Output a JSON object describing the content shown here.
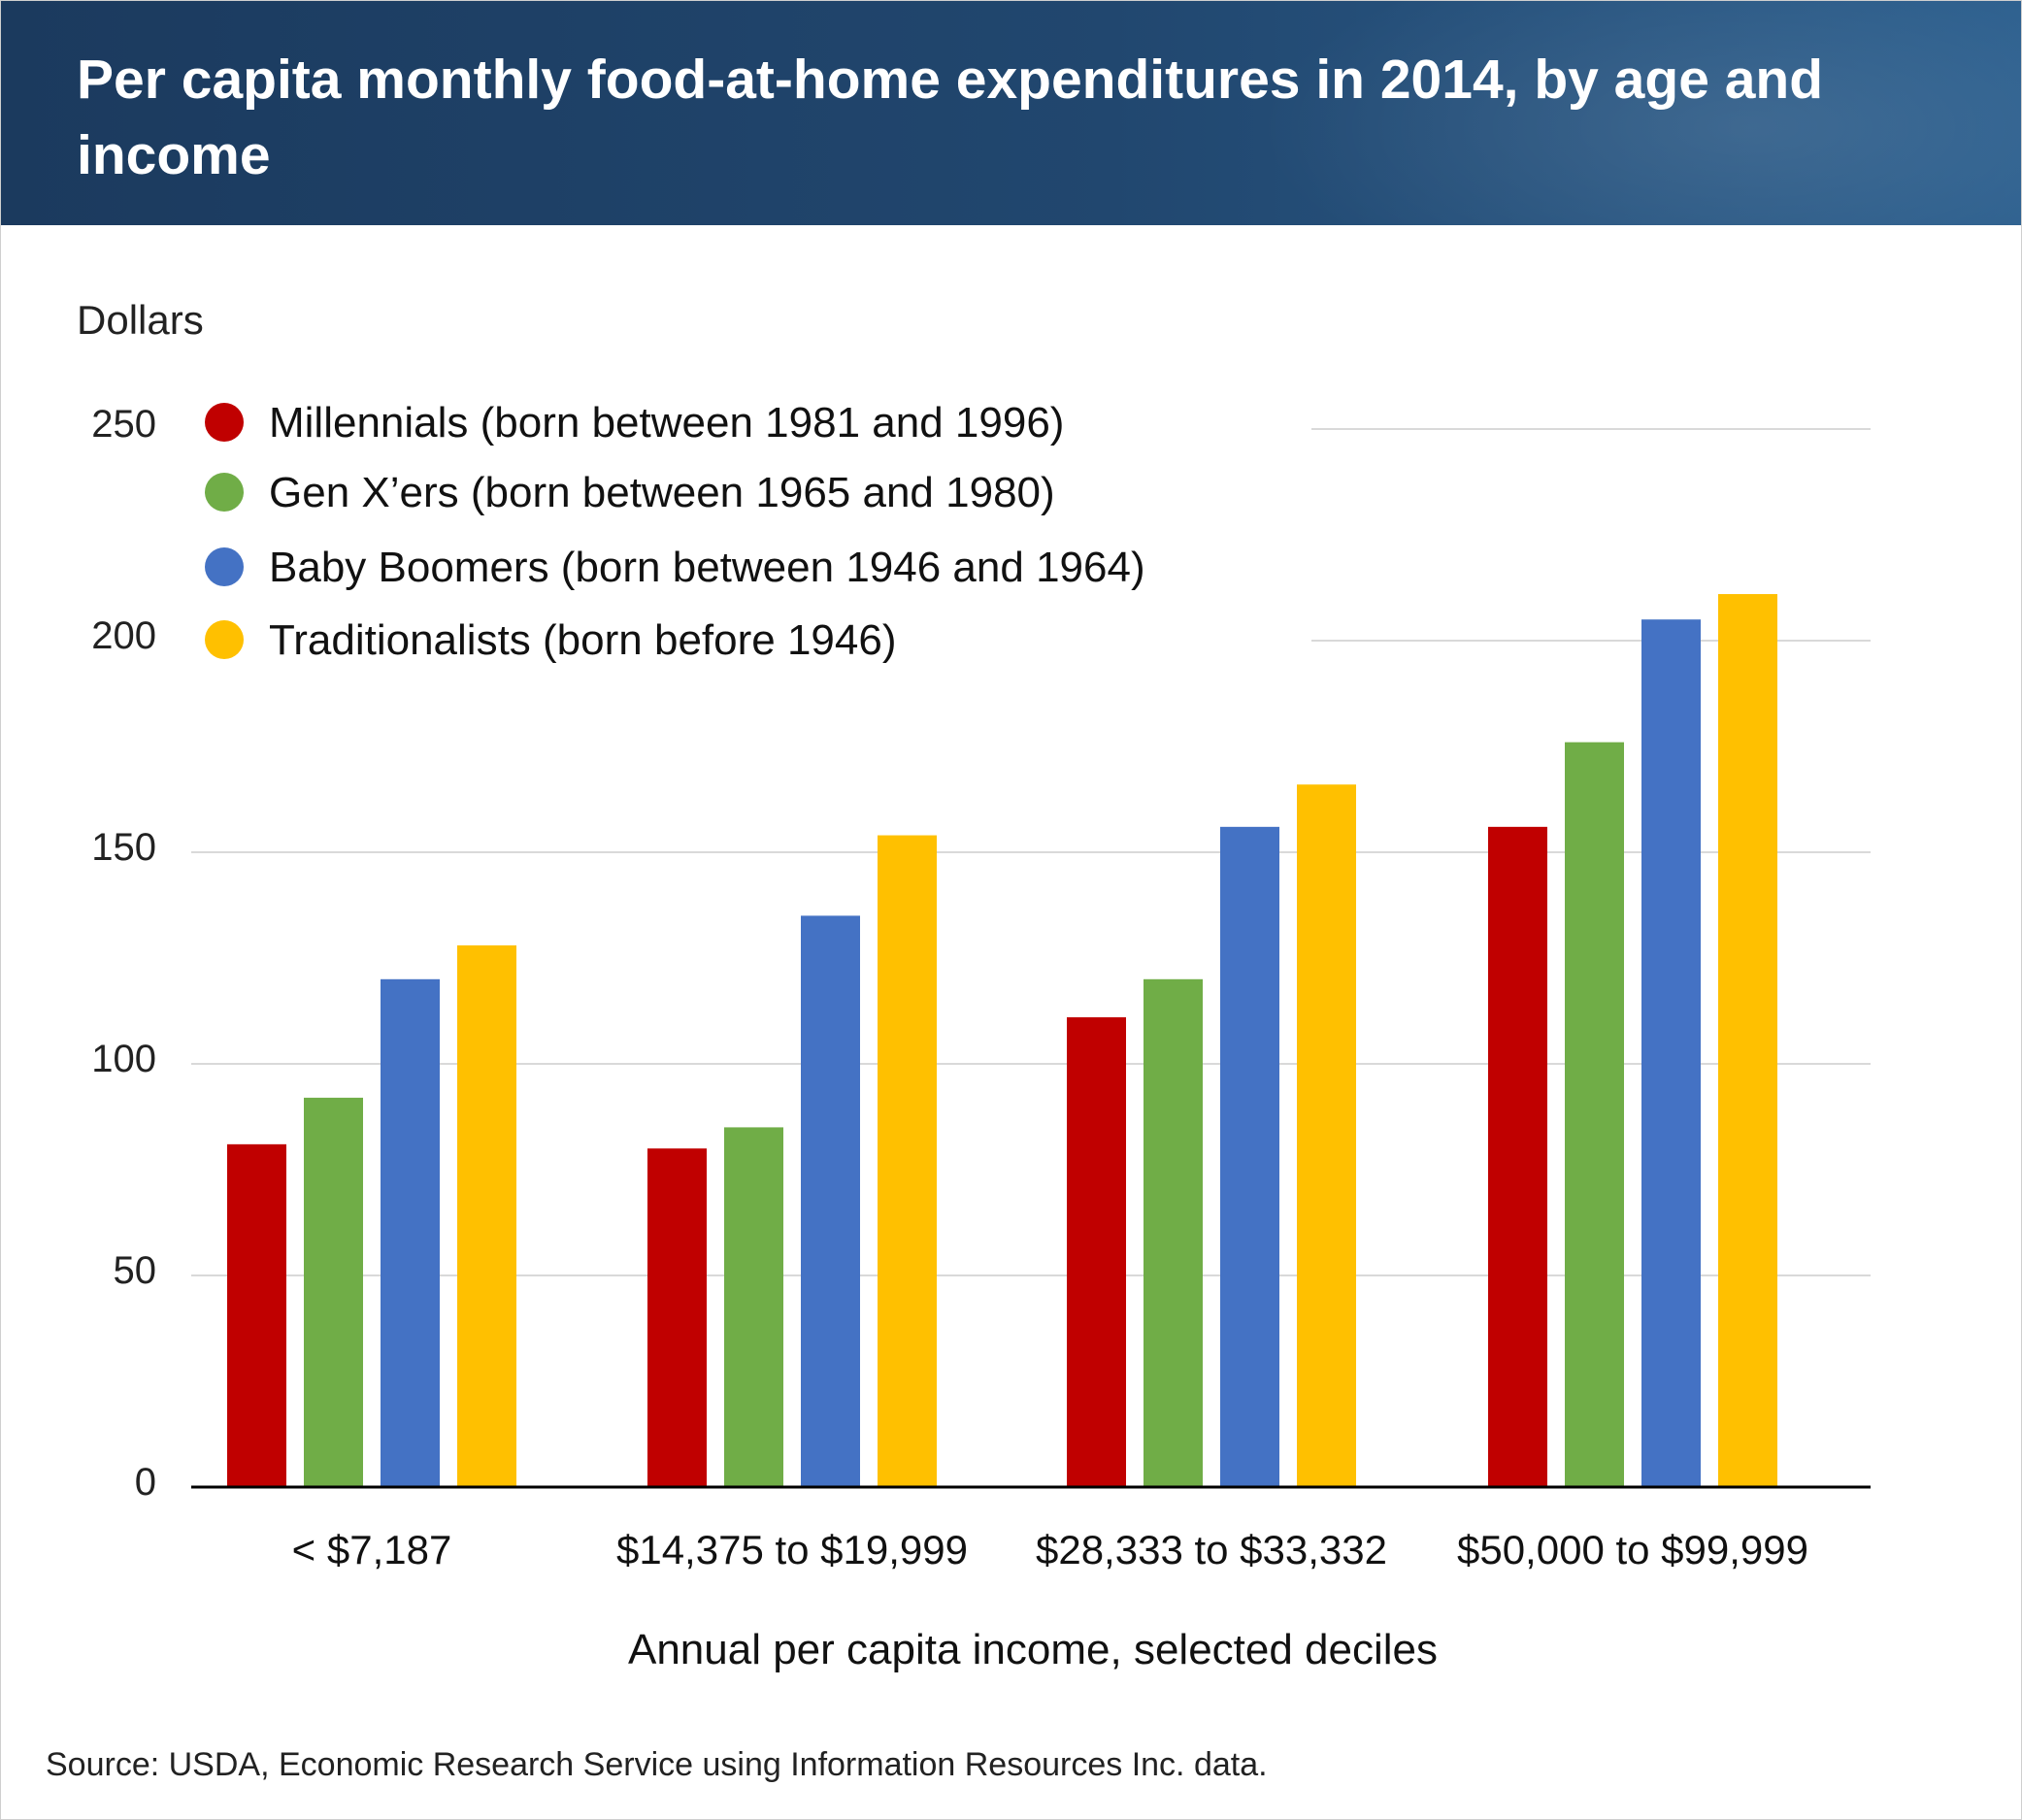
{
  "title": "Per capita monthly food-at-home expenditures in 2014, by age and income",
  "source": "Source: USDA, Economic Research Service using Information Resources Inc. data.",
  "colors": {
    "header_bg": "#1f4470",
    "millennials": "#c00000",
    "genx": "#70ad47",
    "boomers": "#4472c4",
    "traditionalists": "#ffc000",
    "grid": "#d9d9d9",
    "axis": "#000000"
  },
  "chart_data": {
    "type": "bar",
    "title": "Per capita monthly food-at-home expenditures in 2014, by age and income",
    "xlabel": "Annual per capita income, selected deciles",
    "ylabel": "Dollars",
    "categories": [
      "< $7,187",
      "$14,375 to $19,999",
      "$28,333 to $33,332",
      "$50,000 to $99,999"
    ],
    "series": [
      {
        "name": "Millennials (born between 1981 and 1996)",
        "values": [
          81,
          80,
          111,
          156
        ],
        "color": "#c00000"
      },
      {
        "name": "Gen X’ers (born between 1965 and 1980)",
        "values": [
          92,
          85,
          120,
          176
        ],
        "color": "#70ad47"
      },
      {
        "name": "Baby Boomers (born between 1946 and 1964)",
        "values": [
          120,
          135,
          156,
          205
        ],
        "color": "#4472c4"
      },
      {
        "name": "Traditionalists (born before 1946)",
        "values": [
          128,
          154,
          166,
          211
        ],
        "color": "#ffc000"
      }
    ],
    "ylim": [
      0,
      250
    ],
    "yticks": [
      0,
      50,
      100,
      150,
      200,
      250
    ],
    "grid": true,
    "legend_position": "top-left"
  }
}
